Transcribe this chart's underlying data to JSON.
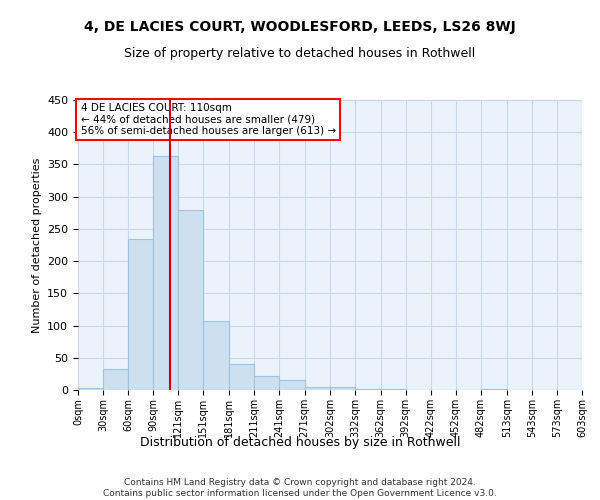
{
  "title": "4, DE LACIES COURT, WOODLESFORD, LEEDS, LS26 8WJ",
  "subtitle": "Size of property relative to detached houses in Rothwell",
  "xlabel": "Distribution of detached houses by size in Rothwell",
  "ylabel": "Number of detached properties",
  "footer_line1": "Contains HM Land Registry data © Crown copyright and database right 2024.",
  "footer_line2": "Contains public sector information licensed under the Open Government Licence v3.0.",
  "annotation_line1": "4 DE LACIES COURT: 110sqm",
  "annotation_line2": "← 44% of detached houses are smaller (479)",
  "annotation_line3": "56% of semi-detached houses are larger (613) →",
  "property_size": 110,
  "bin_edges": [
    0,
    30,
    60,
    90,
    120,
    150,
    181,
    211,
    241,
    271,
    302,
    332,
    362,
    392,
    422,
    452,
    482,
    513,
    543,
    573,
    603
  ],
  "bar_heights": [
    3,
    32,
    235,
    363,
    280,
    107,
    41,
    21,
    16,
    5,
    4,
    1,
    1,
    0,
    0,
    0,
    2,
    0,
    0,
    0
  ],
  "bar_color": "#cce0f0",
  "bar_edge_color": "#a0c4e0",
  "grid_color": "#c8d8e8",
  "background_color": "#eaf2fb",
  "vline_color": "#cc0000",
  "vline_x": 110,
  "ylim": [
    0,
    450
  ],
  "yticks": [
    0,
    50,
    100,
    150,
    200,
    250,
    300,
    350,
    400,
    450
  ],
  "xtick_labels": [
    "0sqm",
    "30sqm",
    "60sqm",
    "90sqm",
    "121sqm",
    "151sqm",
    "181sqm",
    "211sqm",
    "241sqm",
    "271sqm",
    "302sqm",
    "332sqm",
    "362sqm",
    "392sqm",
    "422sqm",
    "452sqm",
    "482sqm",
    "513sqm",
    "543sqm",
    "573sqm",
    "603sqm"
  ]
}
